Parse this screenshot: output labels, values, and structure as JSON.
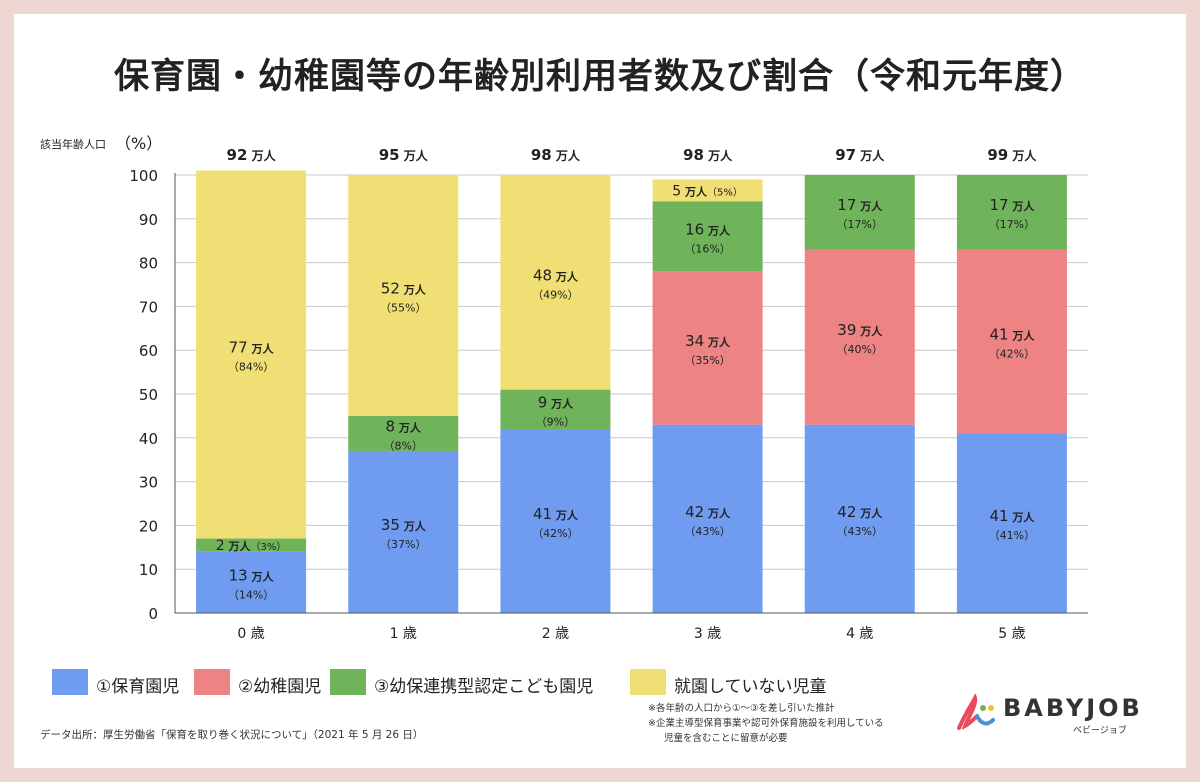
{
  "title": "保育園・幼稚園等の年齢別利用者数及び割合（令和元年度）",
  "colors": {
    "hoikuen": "#6f9cf0",
    "youchien": "#ee8383",
    "kodomoen": "#6fb35b",
    "not_enrolled": "#efdf75"
  },
  "legend": {
    "hoikuen": "①保育園児",
    "youchien": "②幼稚園児",
    "kodomoen": "③幼保連携型認定こども園児",
    "not_enrolled": "就園していない児童"
  },
  "notes": {
    "source": "データ出所：厚生労働省「保育を取り巻く状況について」（2021 年 5 月 26 日）",
    "note1": "※各年齢の人口から①〜③を差し引いた推計",
    "note2": "※企業主導型保育事業や認可外保育施設を利用している",
    "note3": "児童を含むことに留意が必要"
  },
  "logo": {
    "name": "BABYJOB",
    "sub": "ベビージョブ"
  },
  "chart_data": {
    "type": "bar",
    "stacked": true,
    "title": "保育園・幼稚園等の年齢別利用者数及び割合（令和元年度）",
    "ylabel": "（%）",
    "top_label": "該当年齢人口",
    "ylim": [
      0,
      100
    ],
    "yticks": [
      0,
      10,
      20,
      30,
      40,
      50,
      60,
      70,
      80,
      90,
      100
    ],
    "grid": true,
    "unit": "万人",
    "categories": [
      "0 歳",
      "1 歳",
      "2 歳",
      "3 歳",
      "4 歳",
      "5 歳"
    ],
    "population": [
      92,
      95,
      98,
      98,
      97,
      99
    ],
    "series": [
      {
        "name": "①保育園児",
        "key": "hoikuen",
        "counts": [
          13,
          35,
          41,
          42,
          42,
          41
        ],
        "percents": [
          14,
          37,
          42,
          43,
          43,
          41
        ]
      },
      {
        "name": "②幼稚園児",
        "key": "youchien",
        "counts": [
          0,
          0,
          0,
          34,
          39,
          41
        ],
        "percents": [
          0,
          0,
          0,
          35,
          40,
          42
        ]
      },
      {
        "name": "③幼保連携型認定こども園児",
        "key": "kodomoen",
        "counts": [
          2,
          8,
          9,
          16,
          17,
          17
        ],
        "percents": [
          3,
          8,
          9,
          16,
          17,
          17
        ]
      },
      {
        "name": "就園していない児童",
        "key": "not_enrolled",
        "counts": [
          77,
          52,
          48,
          5,
          0,
          0
        ],
        "percents": [
          84,
          55,
          49,
          5,
          0,
          0
        ]
      }
    ]
  }
}
